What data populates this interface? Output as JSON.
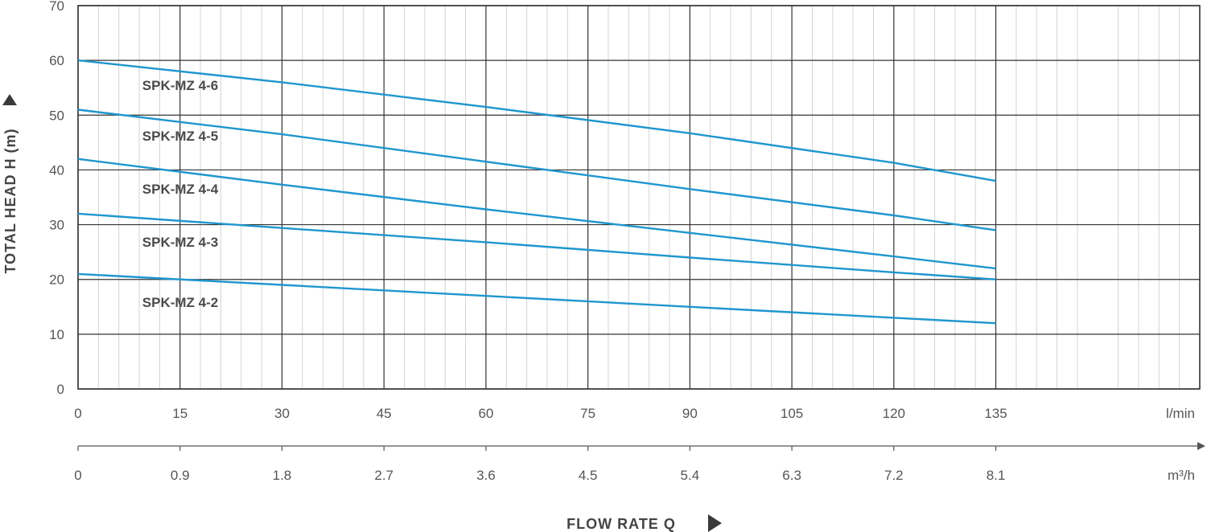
{
  "chart_data": {
    "type": "line",
    "ylabel": "TOTAL HEAD H (m)",
    "xlabel": "FLOW RATE Q",
    "x_unit_primary": "l/min",
    "x_unit_secondary": "m³/h",
    "xlim": [
      0,
      165
    ],
    "ylim": [
      0,
      70
    ],
    "grid": true,
    "x_ticks": [
      0,
      15,
      30,
      45,
      60,
      75,
      90,
      105,
      120,
      135
    ],
    "x_tick_labels": [
      "0",
      "15",
      "30",
      "45",
      "60",
      "75",
      "90",
      "105",
      "120",
      "135"
    ],
    "x2_tick_labels": [
      "0",
      "0.9",
      "1.8",
      "2.7",
      "3.6",
      "4.5",
      "5.4",
      "6.3",
      "7.2",
      "8.1"
    ],
    "y_ticks": [
      0,
      10,
      20,
      30,
      40,
      50,
      60,
      70
    ],
    "y_tick_labels": [
      "0",
      "10",
      "20",
      "30",
      "40",
      "50",
      "60",
      "70"
    ],
    "line_color": "#1f96cf",
    "series": [
      {
        "name": "SPK-MZ 4-6",
        "x": [
          0,
          30,
          60,
          90,
          120,
          135
        ],
        "y": [
          60,
          56,
          51.5,
          46.7,
          41.3,
          38
        ]
      },
      {
        "name": "SPK-MZ 4-5",
        "x": [
          0,
          30,
          60,
          90,
          120,
          135
        ],
        "y": [
          51,
          46.5,
          41.5,
          36.5,
          31.7,
          29
        ]
      },
      {
        "name": "SPK-MZ 4-4",
        "x": [
          0,
          30,
          60,
          90,
          120,
          135
        ],
        "y": [
          42,
          37.3,
          32.8,
          28.5,
          24.2,
          22
        ]
      },
      {
        "name": "SPK-MZ 4-3",
        "x": [
          0,
          30,
          60,
          90,
          120,
          135
        ],
        "y": [
          32,
          29.4,
          26.8,
          24.0,
          21.3,
          20
        ]
      },
      {
        "name": "SPK-MZ 4-2",
        "x": [
          0,
          30,
          60,
          90,
          120,
          135
        ],
        "y": [
          21,
          19,
          17,
          15,
          13,
          12
        ]
      }
    ]
  }
}
